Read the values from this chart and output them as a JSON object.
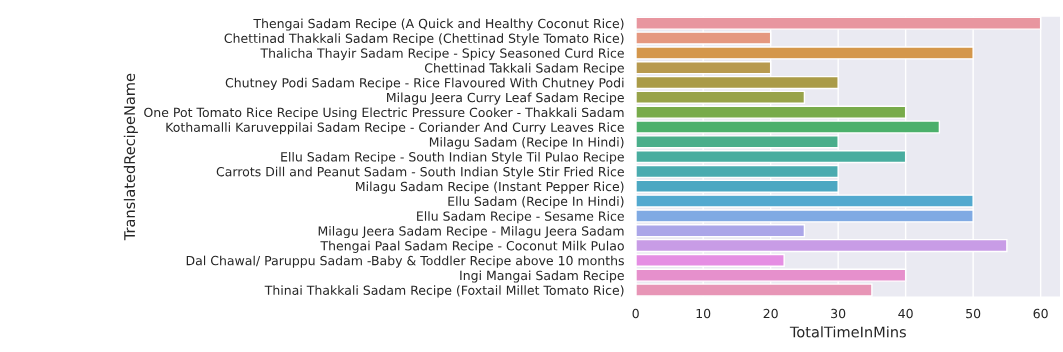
{
  "chart_data": {
    "type": "bar",
    "orientation": "horizontal",
    "xlabel": "TotalTimeInMins",
    "ylabel": "TranslatedRecipeName",
    "categories": [
      "Thengai Sadam Recipe (A Quick and Healthy Coconut Rice)",
      "Chettinad Thakkali Sadam Recipe (Chettinad Style Tomato Rice)",
      "Thalicha Thayir Sadam Recipe - Spicy Seasoned Curd Rice",
      "Chettinad Takkali Sadam Recipe",
      "Chutney Podi Sadam Recipe - Rice Flavoured With Chutney Podi",
      "Milagu Jeera Curry Leaf Sadam Recipe",
      "One Pot Tomato Rice Recipe Using Electric Pressure Cooker - Thakkali Sadam",
      "Kothamalli Karuveppilai Sadam Recipe - Coriander And Curry Leaves Rice",
      "Milagu Sadam (Recipe In Hindi)",
      "Ellu Sadam Recipe - South Indian Style Til Pulao Recipe",
      "Carrots Dill and Peanut Sadam - South Indian Style Stir Fried Rice",
      "Milagu Sadam Recipe (Instant Pepper Rice)",
      "Ellu Sadam (Recipe In Hindi)",
      "Ellu Sadam Recipe - Sesame Rice",
      "Milagu Jeera Sadam Recipe - Milagu Jeera Sadam",
      "Thengai Paal Sadam Recipe - Coconut Milk Pulao",
      "Dal Chawal/ Paruppu Sadam -Baby & Toddler Recipe above 10 months",
      "Ingi Mangai Sadam Recipe",
      "Thinai Thakkali Sadam Recipe (Foxtail Millet Tomato Rice)"
    ],
    "values": [
      60,
      20,
      50,
      20,
      30,
      25,
      40,
      45,
      30,
      40,
      30,
      30,
      50,
      50,
      25,
      55,
      22,
      40,
      35
    ],
    "colors": [
      "#e8969f",
      "#e59880",
      "#d4974b",
      "#b89a4f",
      "#aa9b47",
      "#98a34a",
      "#78ab4b",
      "#4cb06b",
      "#4aae8b",
      "#49ad9f",
      "#4aabaf",
      "#4ca8c2",
      "#52a9cf",
      "#80aae3",
      "#aba6e8",
      "#c89ce6",
      "#e58ee3",
      "#e690cc",
      "#e795b6"
    ],
    "xlim": [
      0,
      63
    ],
    "xticks": [
      0,
      10,
      20,
      30,
      40,
      50,
      60
    ],
    "grid": "x"
  }
}
